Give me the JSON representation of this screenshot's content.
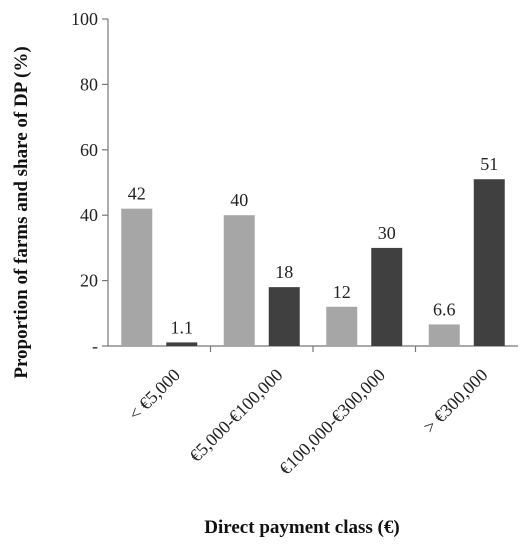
{
  "chart_data": {
    "type": "bar",
    "title": "",
    "xlabel": "Direct payment class (€)",
    "ylabel": "Proportion of farms and share of DP (%)",
    "ylim": [
      0,
      100
    ],
    "yticks": [
      {
        "value": 0,
        "label": "-"
      },
      {
        "value": 20,
        "label": "20"
      },
      {
        "value": 40,
        "label": "40"
      },
      {
        "value": 60,
        "label": "60"
      },
      {
        "value": 80,
        "label": "80"
      },
      {
        "value": 100,
        "label": "100"
      }
    ],
    "grid": false,
    "legend": "none",
    "categories": [
      "< €5,000",
      "€5,000-€100,000",
      "€100,000-€300,000",
      "> €300,000"
    ],
    "series": [
      {
        "color": "#a6a6a6",
        "values": [
          42,
          40,
          12,
          6.6
        ],
        "labels": [
          "42",
          "40",
          "12",
          "6.6"
        ]
      },
      {
        "color": "#404040",
        "values": [
          1.1,
          18,
          30,
          51
        ],
        "labels": [
          "1.1",
          "18",
          "30",
          "51"
        ]
      }
    ]
  }
}
